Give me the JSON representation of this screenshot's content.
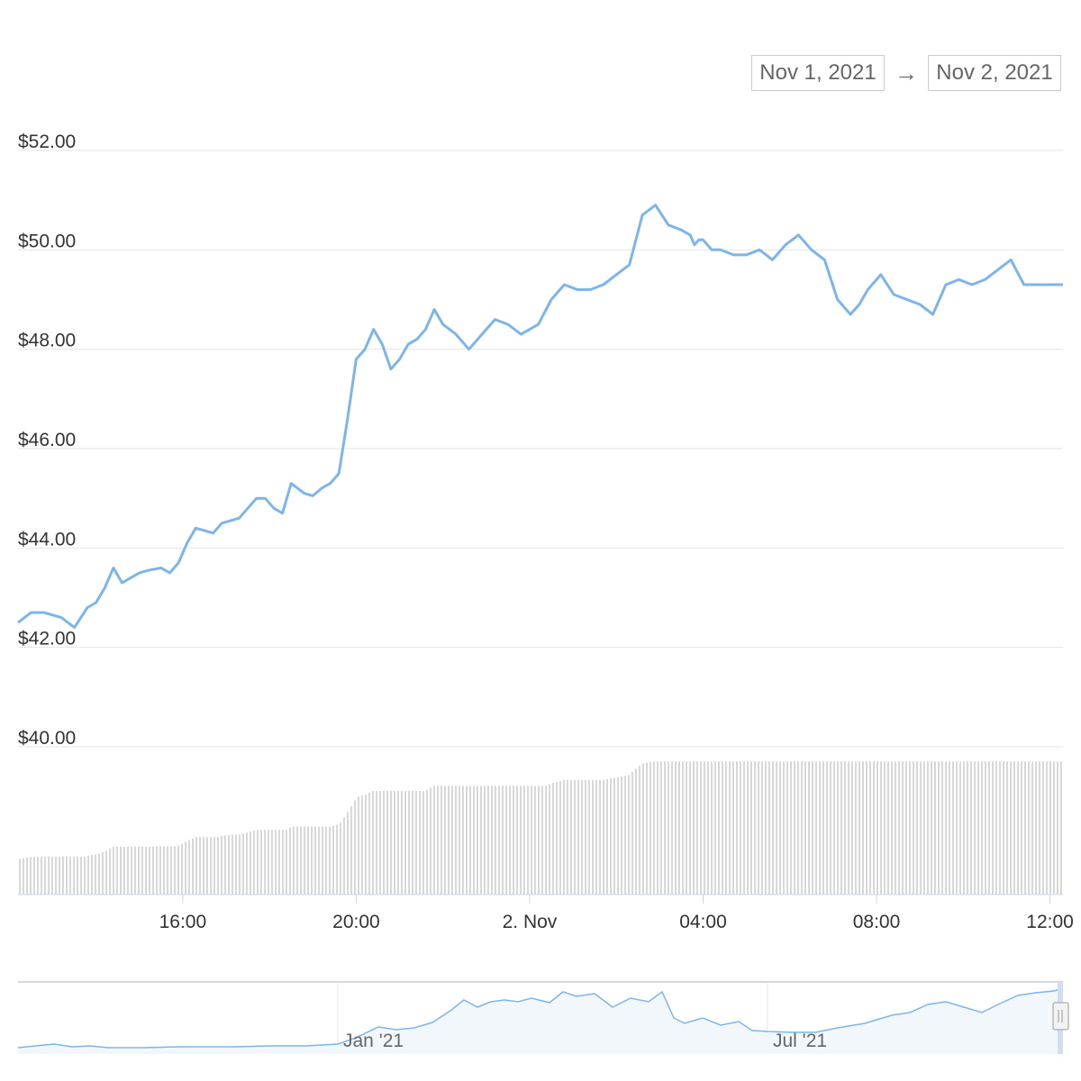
{
  "range_selector": {
    "from": "Nov 1, 2021",
    "to": "Nov 2, 2021",
    "arrow": "→"
  },
  "chart_data": {
    "type": "line",
    "title": "",
    "xlabel": "",
    "ylabel": "",
    "y_tick_labels": [
      "$52.00",
      "$50.00",
      "$48.00",
      "$46.00",
      "$44.00",
      "$42.00",
      "$40.00"
    ],
    "y_ticks": [
      52,
      50,
      48,
      46,
      44,
      42,
      40
    ],
    "ylim": [
      40,
      52
    ],
    "x_tick_labels": [
      "16:00",
      "20:00",
      "2. Nov",
      "04:00",
      "08:00",
      "12:00"
    ],
    "x_ticks_hours": [
      16,
      20,
      24,
      28,
      32,
      36
    ],
    "xlim_hours": [
      12.2,
      36.3
    ],
    "grid": true,
    "legend": "none",
    "line_color": "#7cb5ec",
    "volume_color": "#c8c8c8",
    "series": [
      {
        "type": "line",
        "x_hours": [
          12.2,
          12.5,
          12.8,
          13.2,
          13.5,
          13.8,
          14.0,
          14.2,
          14.4,
          14.6,
          14.8,
          15.0,
          15.2,
          15.5,
          15.7,
          15.9,
          16.1,
          16.3,
          16.5,
          16.7,
          16.9,
          17.1,
          17.3,
          17.5,
          17.7,
          17.9,
          18.1,
          18.3,
          18.5,
          18.8,
          19.0,
          19.2,
          19.4,
          19.6,
          19.8,
          20.0,
          20.2,
          20.4,
          20.6,
          20.8,
          21.0,
          21.2,
          21.4,
          21.6,
          21.8,
          22.0,
          22.3,
          22.6,
          22.9,
          23.2,
          23.5,
          23.8,
          24.0,
          24.2,
          24.5,
          24.8,
          25.1,
          25.4,
          25.7,
          26.0,
          26.3,
          26.6,
          26.9,
          27.2,
          27.5,
          27.7,
          27.8,
          27.9,
          28.0,
          28.2,
          28.4,
          28.7,
          29.0,
          29.3,
          29.6,
          29.9,
          30.2,
          30.5,
          30.8,
          31.1,
          31.4,
          31.6,
          31.8,
          32.1,
          32.4,
          32.7,
          33.0,
          33.3,
          33.6,
          33.9,
          34.2,
          34.5,
          34.8,
          35.1,
          35.4,
          35.7,
          35.9,
          36.1,
          36.3
        ],
        "values": [
          42.5,
          42.7,
          42.7,
          42.6,
          42.4,
          42.8,
          42.9,
          43.2,
          43.6,
          43.3,
          43.4,
          43.5,
          43.55,
          43.6,
          43.5,
          43.7,
          44.1,
          44.4,
          44.35,
          44.3,
          44.5,
          44.55,
          44.6,
          44.8,
          45.0,
          45.0,
          44.8,
          44.7,
          45.3,
          45.1,
          45.05,
          45.2,
          45.3,
          45.5,
          46.6,
          47.8,
          48.0,
          48.4,
          48.1,
          47.6,
          47.8,
          48.1,
          48.2,
          48.4,
          48.8,
          48.5,
          48.3,
          48.0,
          48.3,
          48.6,
          48.5,
          48.3,
          48.4,
          48.5,
          49.0,
          49.3,
          49.2,
          49.2,
          49.3,
          49.5,
          49.7,
          50.7,
          50.9,
          50.5,
          50.4,
          50.3,
          50.1,
          50.2,
          50.2,
          50.0,
          50.0,
          49.9,
          49.9,
          50.0,
          49.8,
          50.1,
          50.3,
          50.0,
          49.8,
          49.0,
          48.7,
          48.9,
          49.2,
          49.5,
          49.1,
          49.0,
          48.9,
          48.7,
          49.3,
          49.4,
          49.3,
          49.4,
          49.6,
          49.8,
          49.3,
          49.3,
          49.3,
          49.3,
          49.3
        ]
      }
    ],
    "navigator": {
      "tick_labels": [
        "Jan '21",
        "Jul '21"
      ]
    }
  }
}
